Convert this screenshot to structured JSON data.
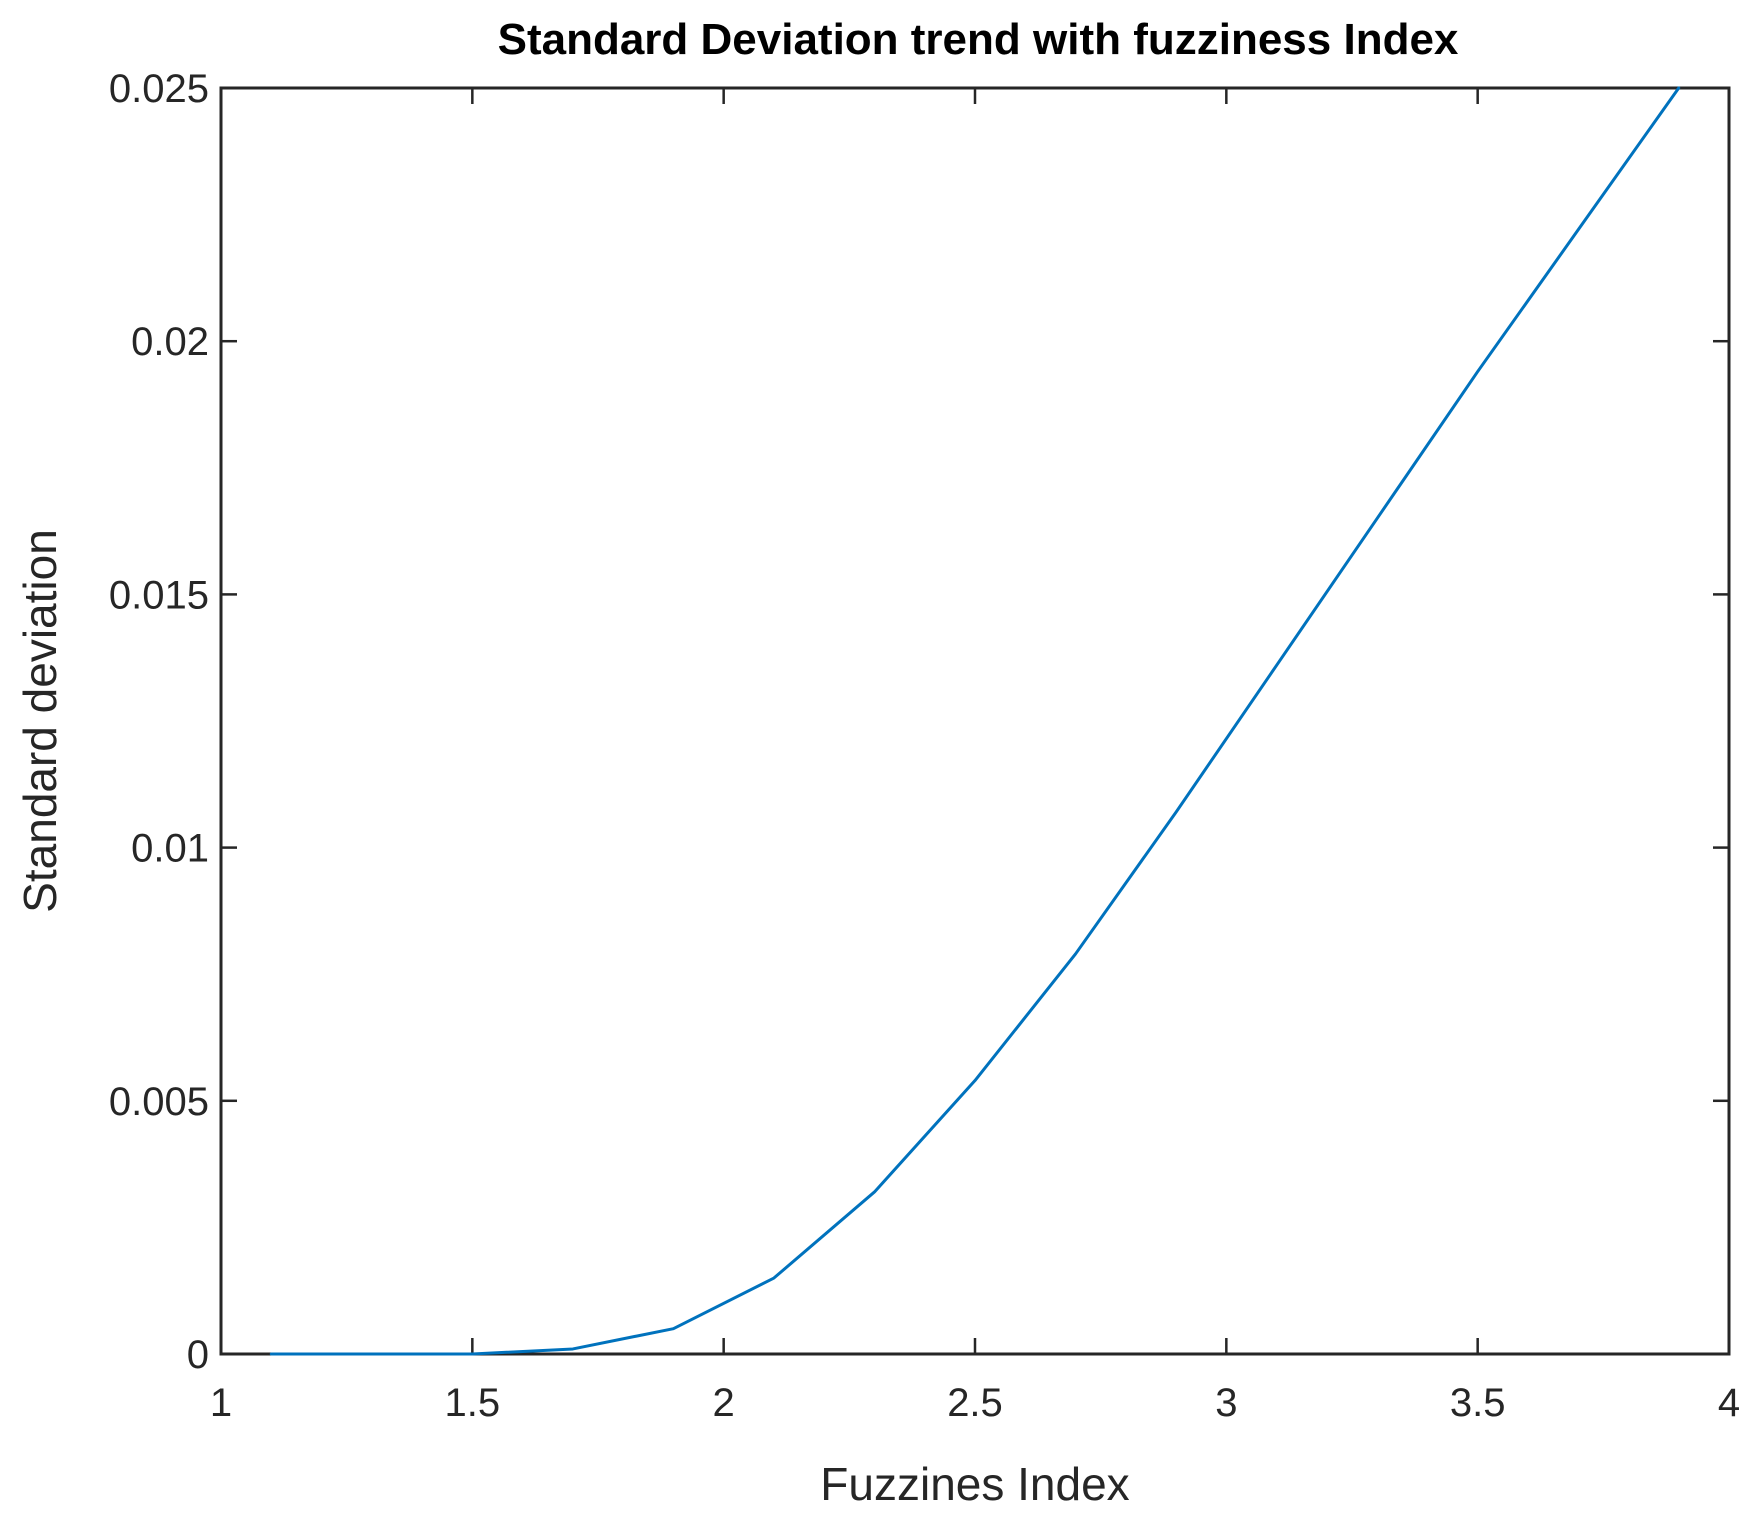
{
  "chart_data": {
    "type": "line",
    "title": "Standard Deviation trend with fuzziness Index",
    "xlabel": "Fuzzines Index",
    "ylabel": "Standard deviation",
    "xlim": [
      1,
      4
    ],
    "ylim": [
      0,
      0.025
    ],
    "xticks": [
      1,
      1.5,
      2,
      2.5,
      3,
      3.5,
      4
    ],
    "xtick_labels": [
      "1",
      "1.5",
      "2",
      "2.5",
      "3",
      "3.5",
      "4"
    ],
    "yticks": [
      0,
      0.005,
      0.01,
      0.015,
      0.02,
      0.025
    ],
    "ytick_labels": [
      "0",
      "0.005",
      "0.01",
      "0.015",
      "0.02",
      "0.025"
    ],
    "grid": false,
    "box": true,
    "series": [
      {
        "color": "#0072BD",
        "x": [
          1.1,
          1.3,
          1.5,
          1.7,
          1.9,
          2.1,
          2.3,
          2.5,
          2.7,
          2.9,
          3.1,
          3.3,
          3.5,
          3.7,
          3.9
        ],
        "y": [
          0,
          0,
          0,
          0.0001,
          0.0005,
          0.0015,
          0.0032,
          0.0054,
          0.0079,
          0.0107,
          0.0136,
          0.0165,
          0.0194,
          0.0222,
          0.025
        ]
      }
    ]
  }
}
